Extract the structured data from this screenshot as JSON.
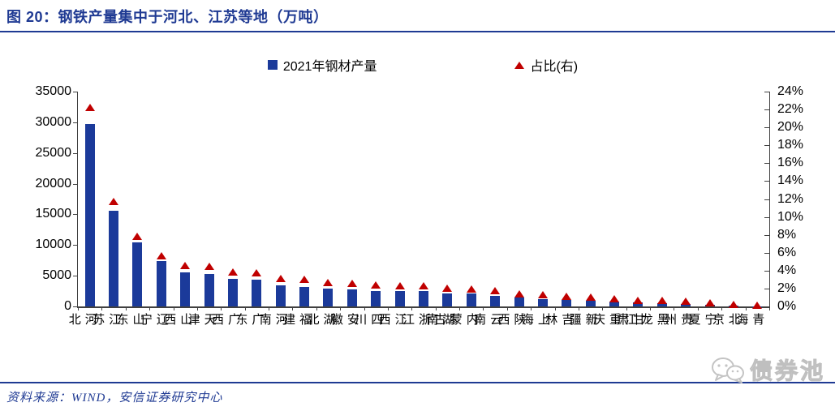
{
  "header": {
    "title": "图 20：钢铁产量集中于河北、江苏等地（万吨）"
  },
  "legend": {
    "bars_label": "2021年钢材产量",
    "markers_label": "占比(右)"
  },
  "footer": {
    "source": "资料来源：WIND，安信证券研究中心"
  },
  "watermark": {
    "text": "债券池"
  },
  "colors": {
    "accent": "#1F3A93",
    "bar": "#1B3A9A",
    "marker": "#C00000",
    "axis": "#404040"
  },
  "chart_data": {
    "type": "bar",
    "title": "图 20：钢铁产量集中于河北、江苏等地（万吨）",
    "xlabel": "",
    "ylabel_left": "万吨",
    "ylabel_right": "占比",
    "grid": false,
    "legend_position": "top",
    "categories": [
      "河北",
      "江苏",
      "山东",
      "辽宁",
      "山西",
      "天津",
      "广西",
      "广东",
      "河南",
      "福建",
      "湖北",
      "安徽",
      "四川",
      "江西",
      "浙江",
      "湖南",
      "内蒙古",
      "云南",
      "陕西",
      "上海",
      "吉林",
      "新疆",
      "重庆",
      "甘肃",
      "黑龙江",
      "贵州",
      "宁夏",
      "北京",
      "青海"
    ],
    "series": [
      {
        "name": "2021年钢材产量",
        "type": "bar",
        "axis": "left",
        "values": [
          29700,
          15600,
          10450,
          7350,
          5520,
          5340,
          4460,
          4400,
          3400,
          3210,
          2910,
          2820,
          2560,
          2550,
          2470,
          2100,
          2080,
          1760,
          1400,
          1250,
          1050,
          950,
          740,
          620,
          530,
          420,
          300,
          100,
          30
        ]
      },
      {
        "name": "占比(右)",
        "type": "scatter",
        "marker": "triangle",
        "axis": "right",
        "unit": "%",
        "values": [
          22.2,
          11.7,
          7.8,
          5.6,
          4.5,
          4.4,
          3.8,
          3.7,
          3.1,
          3.0,
          2.6,
          2.5,
          2.4,
          2.3,
          2.3,
          2.0,
          1.9,
          1.7,
          1.4,
          1.25,
          1.1,
          1.0,
          0.8,
          0.65,
          0.6,
          0.5,
          0.35,
          0.15,
          0.05
        ]
      }
    ],
    "y_left": {
      "min": 0,
      "max": 35000,
      "step": 5000,
      "ticks": [
        "0",
        "5000",
        "10000",
        "15000",
        "20000",
        "25000",
        "30000",
        "35000"
      ]
    },
    "y_right": {
      "min": 0,
      "max": 24,
      "step": 2,
      "ticks": [
        "0%",
        "2%",
        "4%",
        "6%",
        "8%",
        "10%",
        "12%",
        "14%",
        "16%",
        "18%",
        "20%",
        "22%",
        "24%"
      ]
    }
  }
}
